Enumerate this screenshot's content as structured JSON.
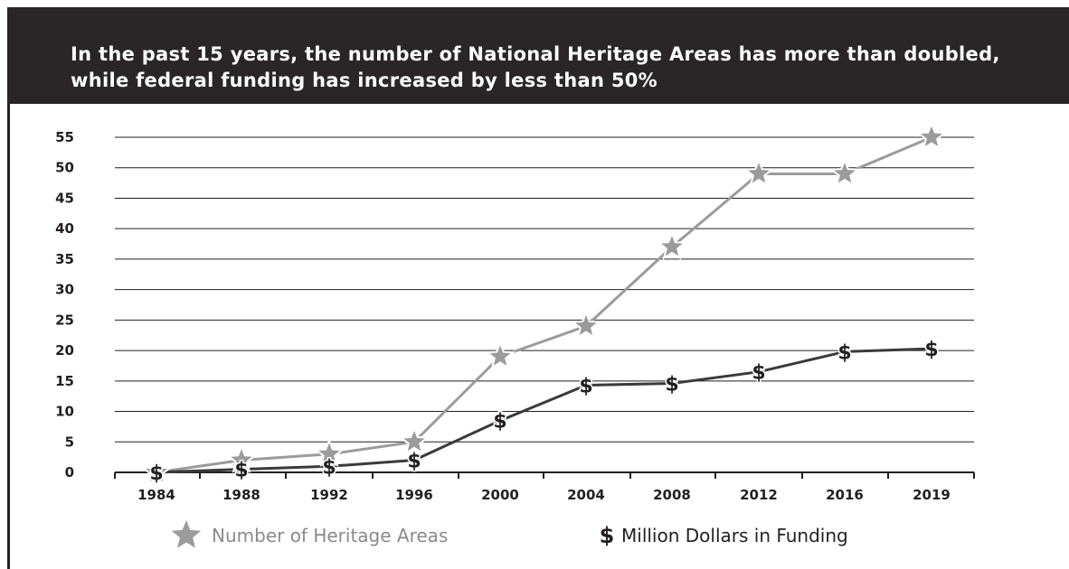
{
  "chart_data": {
    "type": "line",
    "title": "In the past 15 years, the number of National Heritage Areas has more than doubled, while federal funding has increased by less than 50%",
    "categories": [
      "1984",
      "1988",
      "1992",
      "1996",
      "2000",
      "2004",
      "2008",
      "2012",
      "2016",
      "2019"
    ],
    "series": [
      {
        "name": "Number of Heritage Areas",
        "marker": "star-icon",
        "color": "#9b9b9b",
        "values": [
          0,
          2,
          3,
          5,
          19,
          24,
          37,
          49,
          49,
          55
        ]
      },
      {
        "name": "Million Dollars in Funding",
        "marker": "dollar-icon",
        "color": "#3a3a3a",
        "values": [
          0,
          0.5,
          1,
          2,
          8.5,
          14.3,
          14.6,
          16.5,
          19.8,
          20.3
        ]
      }
    ],
    "ylim": [
      0,
      55
    ],
    "yticks": [
      0,
      5,
      10,
      15,
      20,
      25,
      30,
      35,
      40,
      45,
      50,
      55
    ],
    "grid": true,
    "legend": "bottom"
  }
}
